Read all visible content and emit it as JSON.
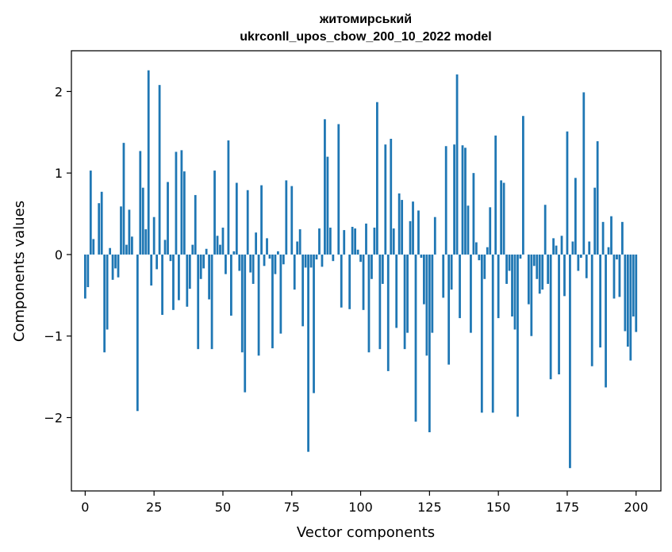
{
  "chart_data": {
    "type": "bar",
    "title": [
      "житомирський",
      "ukrconll_upos_cbow_200_10_2022 model"
    ],
    "xlabel": "Vector components",
    "ylabel": "Components values",
    "xlim": [
      -5,
      209
    ],
    "ylim": [
      -2.9,
      2.5
    ],
    "x_ticks": [
      0,
      25,
      50,
      75,
      100,
      125,
      150,
      175,
      200
    ],
    "y_ticks": [
      -2,
      -1,
      0,
      1,
      2
    ],
    "x_tick_labels": [
      "0",
      "25",
      "50",
      "75",
      "100",
      "125",
      "150",
      "175",
      "200"
    ],
    "y_tick_labels": [
      "−2",
      "−1",
      "0",
      "1",
      "2"
    ],
    "grid": false,
    "bar_color": "#1f77b4",
    "values": [
      -0.54,
      -0.4,
      1.03,
      0.19,
      0.0,
      0.63,
      0.77,
      -1.2,
      -0.92,
      0.08,
      -0.31,
      -0.17,
      -0.28,
      0.59,
      1.37,
      0.12,
      0.55,
      0.22,
      0.0,
      -1.92,
      1.27,
      0.82,
      0.31,
      2.26,
      -0.38,
      0.46,
      -0.18,
      2.08,
      -0.74,
      0.18,
      0.89,
      -0.08,
      -0.68,
      1.26,
      -0.56,
      1.28,
      1.02,
      -0.64,
      -0.42,
      0.12,
      0.73,
      -1.16,
      -0.3,
      -0.17,
      0.07,
      -0.55,
      -1.16,
      1.03,
      0.23,
      0.12,
      0.33,
      -0.24,
      1.4,
      -0.75,
      0.04,
      0.88,
      -0.2,
      -1.2,
      -1.69,
      0.79,
      -0.22,
      -0.36,
      0.27,
      -1.24,
      0.85,
      -0.14,
      0.2,
      -0.05,
      -1.15,
      -0.24,
      0.04,
      -0.97,
      -0.12,
      0.91,
      0.0,
      0.84,
      -0.43,
      0.16,
      0.31,
      -0.88,
      -0.16,
      -2.42,
      -0.16,
      -1.7,
      -0.06,
      0.32,
      -0.15,
      1.66,
      1.2,
      0.33,
      -0.08,
      0.0,
      1.6,
      -0.65,
      0.3,
      0.0,
      -0.67,
      0.34,
      0.32,
      0.06,
      -0.09,
      -0.68,
      0.38,
      -1.2,
      -0.3,
      0.33,
      1.87,
      -1.16,
      -0.36,
      1.35,
      -1.43,
      1.42,
      0.32,
      -0.9,
      0.75,
      0.67,
      -1.16,
      -0.96,
      0.41,
      0.65,
      -2.05,
      0.54,
      -0.04,
      -0.61,
      -1.24,
      -2.18,
      -0.96,
      0.46,
      0.0,
      0.0,
      -0.53,
      1.33,
      -1.35,
      -0.43,
      1.35,
      2.21,
      -0.78,
      1.34,
      1.31,
      0.6,
      -0.96,
      1.0,
      0.15,
      -0.07,
      -1.94,
      -0.3,
      0.09,
      0.58,
      -1.94,
      1.46,
      -0.78,
      0.91,
      0.88,
      -0.36,
      -0.2,
      -0.76,
      -0.92,
      -1.99,
      -0.05,
      1.7,
      0.0,
      -0.61,
      -1.0,
      -0.14,
      -0.3,
      -0.48,
      -0.43,
      0.61,
      -0.36,
      -1.53,
      0.2,
      0.11,
      -1.47,
      0.23,
      -0.51,
      1.51,
      -2.62,
      0.16,
      0.94,
      -0.2,
      -0.04,
      1.99,
      -0.29,
      0.16,
      -1.37,
      0.82,
      1.39,
      -1.14,
      0.4,
      -1.63,
      0.09,
      0.47,
      -0.54,
      -0.06,
      -0.52,
      0.4,
      -0.94,
      -1.13,
      -1.3,
      -0.76,
      -0.95
    ]
  }
}
